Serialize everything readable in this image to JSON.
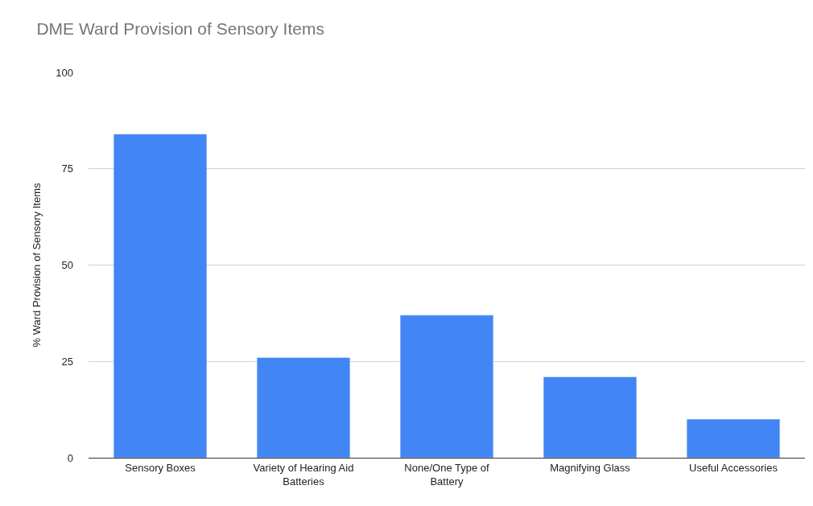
{
  "chart_data": {
    "type": "bar",
    "title": "DME Ward Provision of Sensory Items",
    "ylabel": "% Ward Provision of Sensory Items",
    "categories": [
      "Sensory Boxes",
      "Variety of Hearing Aid Batteries",
      "None/One Type of Battery",
      "Magnifying Glass",
      "Useful Accessories"
    ],
    "values": [
      84,
      26,
      37,
      21,
      10
    ],
    "color": "#4285f4",
    "ylim": [
      0,
      100
    ],
    "yticks": [
      0,
      25,
      50,
      75,
      100
    ],
    "grid": "y"
  }
}
